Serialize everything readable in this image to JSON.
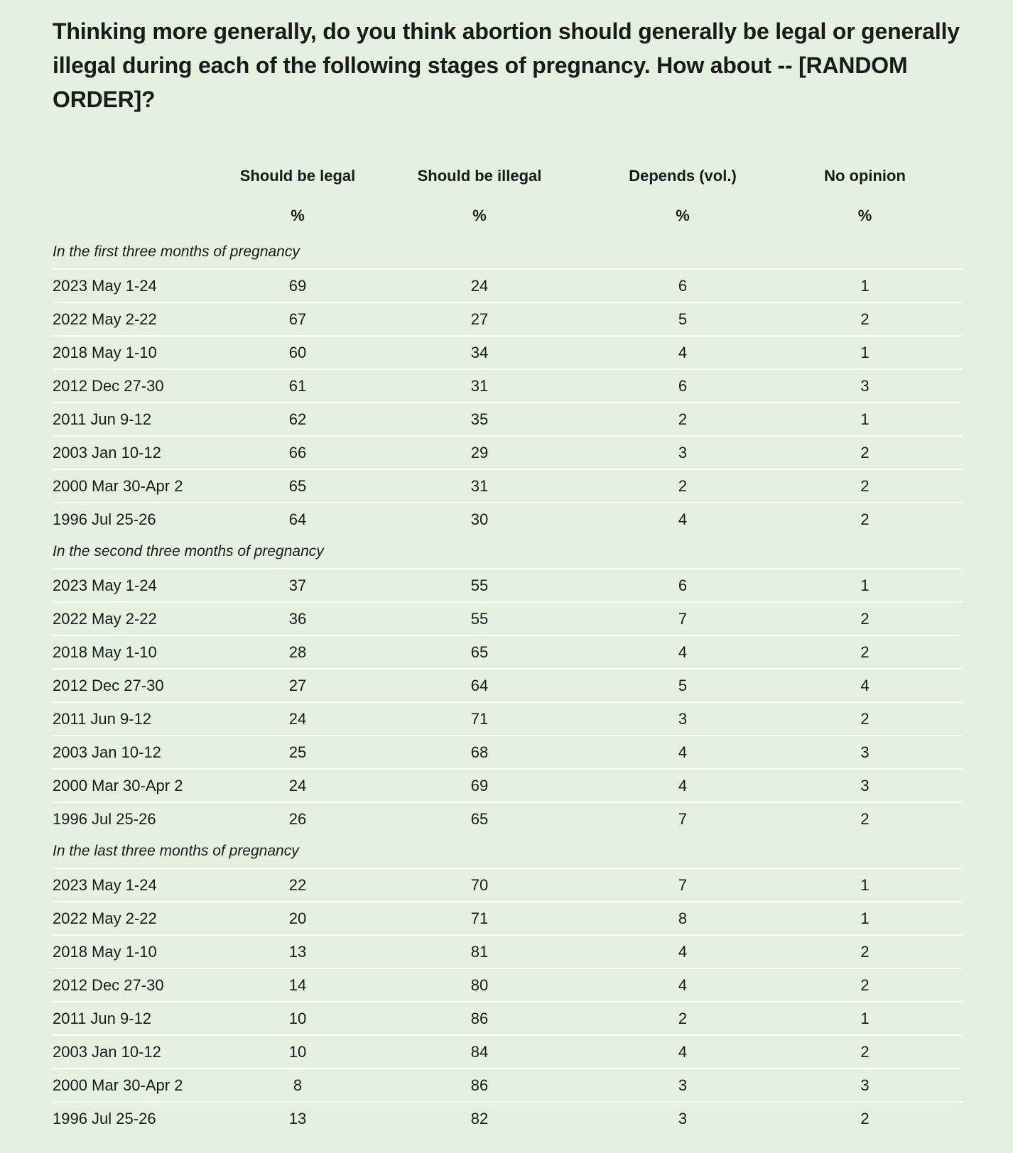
{
  "title": "Thinking more generally, do you think abortion should generally be legal or generally illegal during each of the following stages of pregnancy. How about -- [RANDOM ORDER]?",
  "colors": {
    "background": "#e4f0e0",
    "row_divider": "#ffffff",
    "text": "#1a1a1a"
  },
  "chart_data": {
    "type": "table",
    "title": "Thinking more generally, do you think abortion should generally be legal or generally illegal during each of the following stages of pregnancy. How about -- [RANDOM ORDER]?",
    "columns": [
      "Should be legal",
      "Should be illegal",
      "Depends (vol.)",
      "No opinion"
    ],
    "units": [
      "%",
      "%",
      "%",
      "%"
    ],
    "sections": [
      {
        "name": "In the first three months of pregnancy",
        "rows": [
          {
            "label": "2023 May 1-24",
            "values": [
              "69",
              "24",
              "6",
              "1"
            ]
          },
          {
            "label": "2022 May 2-22",
            "values": [
              "67",
              "27",
              "5",
              "2"
            ]
          },
          {
            "label": "2018 May 1-10",
            "values": [
              "60",
              "34",
              "4",
              "1"
            ]
          },
          {
            "label": "2012 Dec 27-30",
            "values": [
              "61",
              "31",
              "6",
              "3"
            ]
          },
          {
            "label": "2011 Jun 9-12",
            "values": [
              "62",
              "35",
              "2",
              "1"
            ]
          },
          {
            "label": "2003 Jan 10-12",
            "values": [
              "66",
              "29",
              "3",
              "2"
            ]
          },
          {
            "label": "2000 Mar 30-Apr 2",
            "values": [
              "65",
              "31",
              "2",
              "2"
            ]
          },
          {
            "label": "1996 Jul 25-26",
            "values": [
              "64",
              "30",
              "4",
              "2"
            ]
          }
        ]
      },
      {
        "name": "In the second three months of pregnancy",
        "rows": [
          {
            "label": "2023 May 1-24",
            "values": [
              "37",
              "55",
              "6",
              "1"
            ]
          },
          {
            "label": "2022 May 2-22",
            "values": [
              "36",
              "55",
              "7",
              "2"
            ]
          },
          {
            "label": "2018 May 1-10",
            "values": [
              "28",
              "65",
              "4",
              "2"
            ]
          },
          {
            "label": "2012 Dec 27-30",
            "values": [
              "27",
              "64",
              "5",
              "4"
            ]
          },
          {
            "label": "2011 Jun 9-12",
            "values": [
              "24",
              "71",
              "3",
              "2"
            ]
          },
          {
            "label": "2003 Jan 10-12",
            "values": [
              "25",
              "68",
              "4",
              "3"
            ]
          },
          {
            "label": "2000 Mar 30-Apr 2",
            "values": [
              "24",
              "69",
              "4",
              "3"
            ]
          },
          {
            "label": "1996 Jul 25-26",
            "values": [
              "26",
              "65",
              "7",
              "2"
            ]
          }
        ]
      },
      {
        "name": "In the last three months of pregnancy",
        "rows": [
          {
            "label": "2023 May 1-24",
            "values": [
              "22",
              "70",
              "7",
              "1"
            ]
          },
          {
            "label": "2022 May 2-22",
            "values": [
              "20",
              "71",
              "8",
              "1"
            ]
          },
          {
            "label": "2018 May 1-10",
            "values": [
              "13",
              "81",
              "4",
              "2"
            ]
          },
          {
            "label": "2012 Dec 27-30",
            "values": [
              "14",
              "80",
              "4",
              "2"
            ]
          },
          {
            "label": "2011 Jun 9-12",
            "values": [
              "10",
              "86",
              "2",
              "1"
            ]
          },
          {
            "label": "2003 Jan 10-12",
            "values": [
              "10",
              "84",
              "4",
              "2"
            ]
          },
          {
            "label": "2000 Mar 30-Apr 2",
            "values": [
              "8",
              "86",
              "3",
              "3"
            ]
          },
          {
            "label": "1996 Jul 25-26",
            "values": [
              "13",
              "82",
              "3",
              "2"
            ]
          }
        ]
      }
    ]
  }
}
